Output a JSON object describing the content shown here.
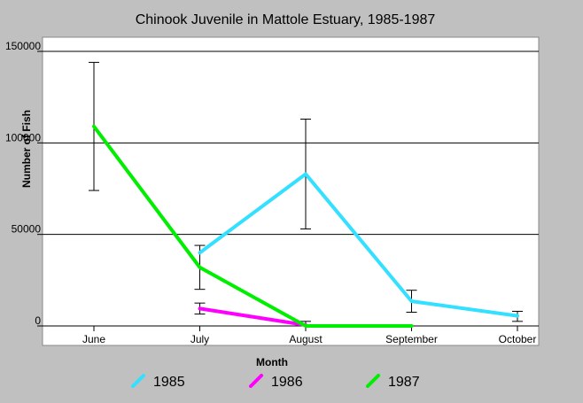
{
  "chart_data": {
    "type": "line",
    "title": "Chinook Juvenile in Mattole Estuary, 1985-1987",
    "xlabel": "Month",
    "ylabel": "Number of Fish",
    "categories": [
      "June",
      "July",
      "August",
      "September",
      "October"
    ],
    "ylim": [
      0,
      150000
    ],
    "yticks": [
      0,
      50000,
      100000,
      150000
    ],
    "ytick_labels": [
      "0",
      "50000",
      "100000",
      "150000"
    ],
    "grid": "horizontal",
    "legend_position": "bottom",
    "series": [
      {
        "name": "1985",
        "color": "#33e0ff",
        "values": [
          null,
          40000,
          83000,
          13500,
          5500
        ],
        "error_bars": [
          null,
          null,
          [
            53000,
            113000
          ],
          [
            7500,
            19500
          ],
          [
            2500,
            8000
          ]
        ]
      },
      {
        "name": "1986",
        "color": "#ff00ff",
        "values": [
          null,
          9500,
          500,
          null,
          null
        ],
        "error_bars": [
          null,
          [
            6500,
            12500
          ],
          [
            0,
            2500
          ],
          null,
          null
        ]
      },
      {
        "name": "1987",
        "color": "#00ee00",
        "values": [
          109000,
          32000,
          0,
          0,
          null
        ],
        "error_bars": [
          [
            74000,
            144000
          ],
          [
            20000,
            44000
          ],
          null,
          null,
          null
        ]
      }
    ]
  }
}
